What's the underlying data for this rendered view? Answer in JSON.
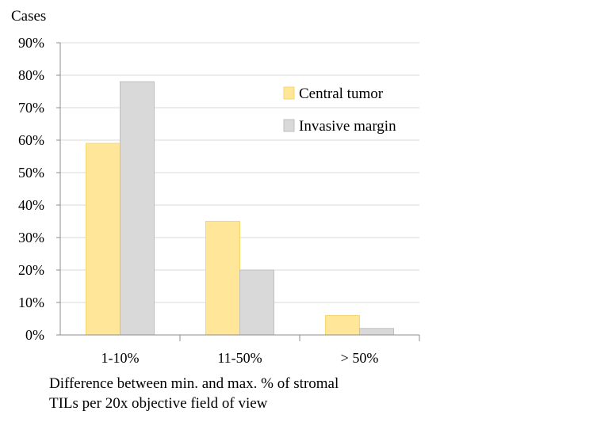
{
  "chart_data": {
    "type": "bar",
    "ylabel": "Cases",
    "xlabel_lines": [
      "Difference between min. and max. % of stromal",
      "TILs per 20x objective field of view"
    ],
    "categories": [
      "1-10%",
      "11-50%",
      "> 50%"
    ],
    "y_ticks": [
      "0%",
      "10%",
      "20%",
      "30%",
      "40%",
      "50%",
      "60%",
      "70%",
      "80%",
      "90%"
    ],
    "ylim": [
      0,
      90
    ],
    "grid": true,
    "legend_position": "top-right",
    "series": [
      {
        "name": "Central tumor",
        "color": "#FFE699",
        "stroke": "#F5D76E",
        "values": [
          59,
          35,
          6
        ]
      },
      {
        "name": "Invasive margin",
        "color": "#D9D9D9",
        "stroke": "#BFBFBF",
        "values": [
          78,
          20,
          2
        ]
      }
    ]
  }
}
